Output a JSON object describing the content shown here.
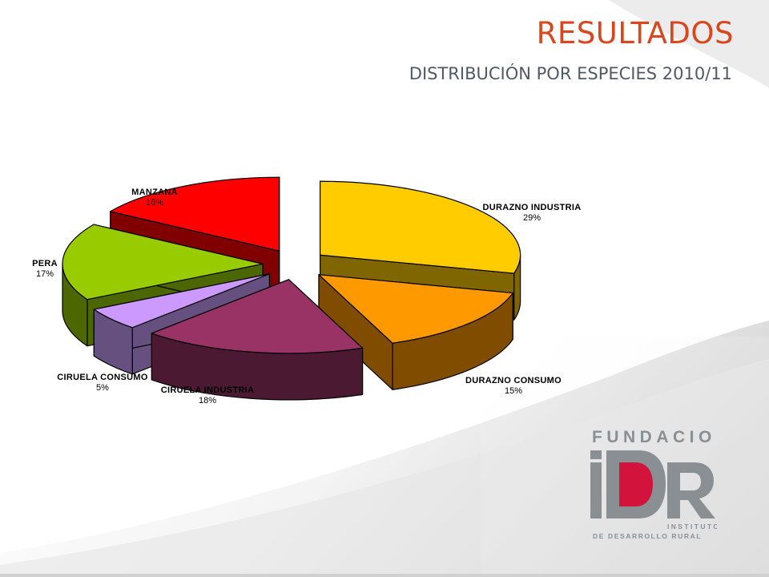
{
  "slide": {
    "title": "RESULTADOS",
    "subtitle": "DISTRIBUCIÓN POR ESPECIES 2010/11"
  },
  "logo": {
    "top_text": "FUNDACION",
    "mark": "IDR",
    "line1": "INSTITUTO",
    "line2": "DE DESARROLLO RURAL",
    "colors": {
      "gray": "#8a8f94",
      "red": "#d2143c"
    }
  },
  "chart_data": {
    "type": "pie",
    "title": "",
    "style": "3d-exploded",
    "slices": [
      {
        "label": "DURAZNO INDUSTRIA",
        "value": 29,
        "display": "29%",
        "color": "#ffcc00",
        "side": "#7f6600"
      },
      {
        "label": "DURAZNO CONSUMO",
        "value": 15,
        "display": "15%",
        "color": "#ff9900",
        "side": "#804c00"
      },
      {
        "label": "CIRUELA INDUSTRIA",
        "value": 18,
        "display": "18%",
        "color": "#993366",
        "side": "#4c1933"
      },
      {
        "label": "CIRUELA CONSUMO",
        "value": 5,
        "display": "5%",
        "color": "#cc99ff",
        "side": "#665080"
      },
      {
        "label": "PERA",
        "value": 17,
        "display": "17%",
        "color": "#99cc00",
        "side": "#4c6600"
      },
      {
        "label": "MANZANA",
        "value": 16,
        "display": "16%",
        "color": "#ff0000",
        "side": "#800000"
      }
    ]
  }
}
